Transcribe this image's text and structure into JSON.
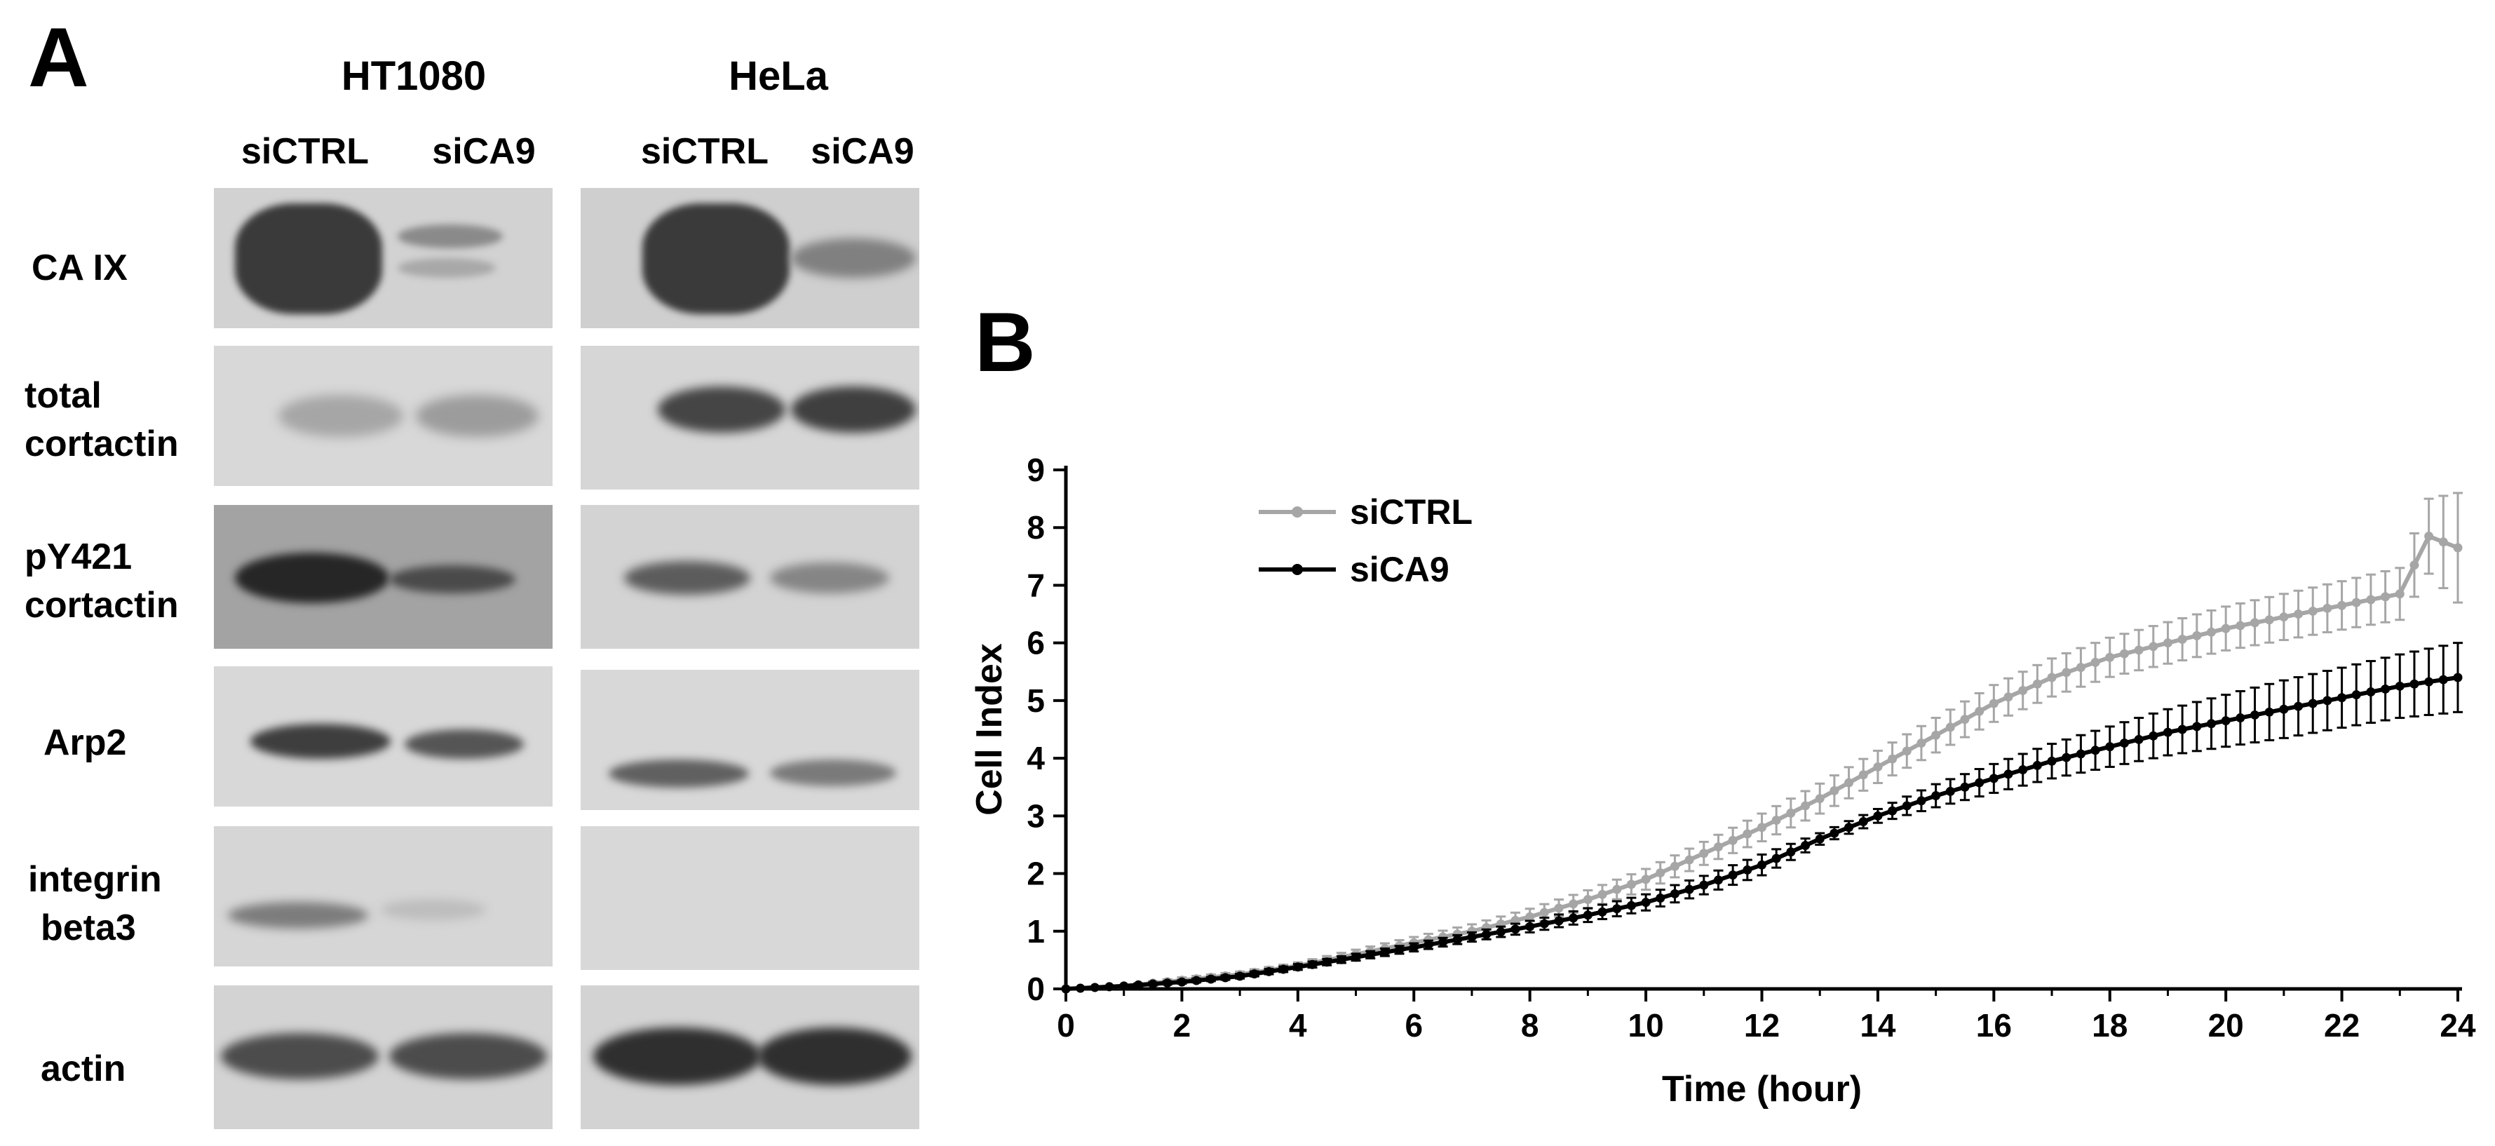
{
  "panel_a": {
    "letter": "A",
    "cell_lines": [
      "HT1080",
      "HeLa"
    ],
    "conditions": [
      "siCTRL",
      "siCA9",
      "siCTRL",
      "siCA9"
    ],
    "proteins": [
      {
        "line1": "CA IX",
        "line2": ""
      },
      {
        "line1": "total",
        "line2": "cortactin"
      },
      {
        "line1": "pY421",
        "line2": "cortactin"
      },
      {
        "line1": "Arp2",
        "line2": ""
      },
      {
        "line1": "integrin",
        "line2": "beta3"
      },
      {
        "line1": "actin",
        "line2": ""
      }
    ],
    "blot_band_intensity": [
      {
        "protein": "CA IX",
        "HT1080": [
          1.0,
          0.25
        ],
        "HeLa": [
          1.0,
          0.45
        ]
      },
      {
        "protein": "total cortactin",
        "HT1080": [
          0.35,
          0.4
        ],
        "HeLa": [
          0.8,
          0.8
        ]
      },
      {
        "protein": "pY421 cortactin",
        "HT1080": [
          0.9,
          0.45
        ],
        "HeLa": [
          0.6,
          0.35
        ]
      },
      {
        "protein": "Arp2",
        "HT1080": [
          0.75,
          0.6
        ],
        "HeLa": [
          0.55,
          0.45
        ]
      },
      {
        "protein": "integrin beta3",
        "HT1080": [
          0.35,
          0.15
        ],
        "HeLa": [
          0.0,
          0.0
        ]
      },
      {
        "protein": "actin",
        "HT1080": [
          0.7,
          0.7
        ],
        "HeLa": [
          0.9,
          0.9
        ]
      }
    ]
  },
  "panel_b": {
    "letter": "B"
  },
  "chart_data": {
    "type": "line",
    "title": "",
    "xlabel": "Time (hour)",
    "ylabel": "Cell Index",
    "xlim": [
      0,
      24
    ],
    "ylim": [
      0,
      9
    ],
    "xticks": [
      0,
      2,
      4,
      6,
      8,
      10,
      12,
      14,
      16,
      18,
      20,
      22,
      24
    ],
    "yticks": [
      0,
      1,
      2,
      3,
      4,
      5,
      6,
      7,
      8,
      9
    ],
    "legend_position": "top-left",
    "grid": false,
    "series": [
      {
        "name": "siCTRL",
        "color": "#a6a6a6",
        "x": [
          0,
          1,
          2,
          3,
          4,
          5,
          6,
          7,
          8,
          9,
          10,
          11,
          12,
          13,
          14,
          15,
          16,
          17,
          18,
          19,
          20,
          21,
          22,
          23,
          23.5,
          24
        ],
        "y": [
          0,
          0.05,
          0.15,
          0.25,
          0.4,
          0.6,
          0.8,
          1.0,
          1.25,
          1.55,
          1.9,
          2.35,
          2.8,
          3.3,
          3.85,
          4.4,
          4.95,
          5.4,
          5.75,
          6.0,
          6.25,
          6.45,
          6.65,
          6.85,
          7.85,
          7.65
        ],
        "error": [
          0,
          0.02,
          0.05,
          0.05,
          0.06,
          0.08,
          0.1,
          0.12,
          0.14,
          0.16,
          0.18,
          0.2,
          0.24,
          0.26,
          0.28,
          0.3,
          0.32,
          0.33,
          0.34,
          0.36,
          0.38,
          0.4,
          0.42,
          0.45,
          0.65,
          0.95
        ]
      },
      {
        "name": "siCA9",
        "color": "#000000",
        "x": [
          0,
          1,
          2,
          3,
          4,
          5,
          6,
          7,
          8,
          9,
          10,
          11,
          12,
          13,
          14,
          15,
          16,
          17,
          18,
          19,
          20,
          21,
          22,
          23,
          24
        ],
        "y": [
          0,
          0.05,
          0.12,
          0.22,
          0.38,
          0.55,
          0.72,
          0.9,
          1.08,
          1.28,
          1.5,
          1.8,
          2.15,
          2.6,
          3.0,
          3.35,
          3.65,
          3.95,
          4.2,
          4.45,
          4.65,
          4.85,
          5.05,
          5.25,
          5.4
        ]
      }
    ],
    "siCA9_error": [
      0,
      0.02,
      0.03,
      0.04,
      0.05,
      0.06,
      0.07,
      0.08,
      0.1,
      0.12,
      0.14,
      0.16,
      0.18,
      0.1,
      0.12,
      0.2,
      0.25,
      0.3,
      0.35,
      0.4,
      0.45,
      0.5,
      0.52,
      0.55,
      0.6
    ]
  }
}
